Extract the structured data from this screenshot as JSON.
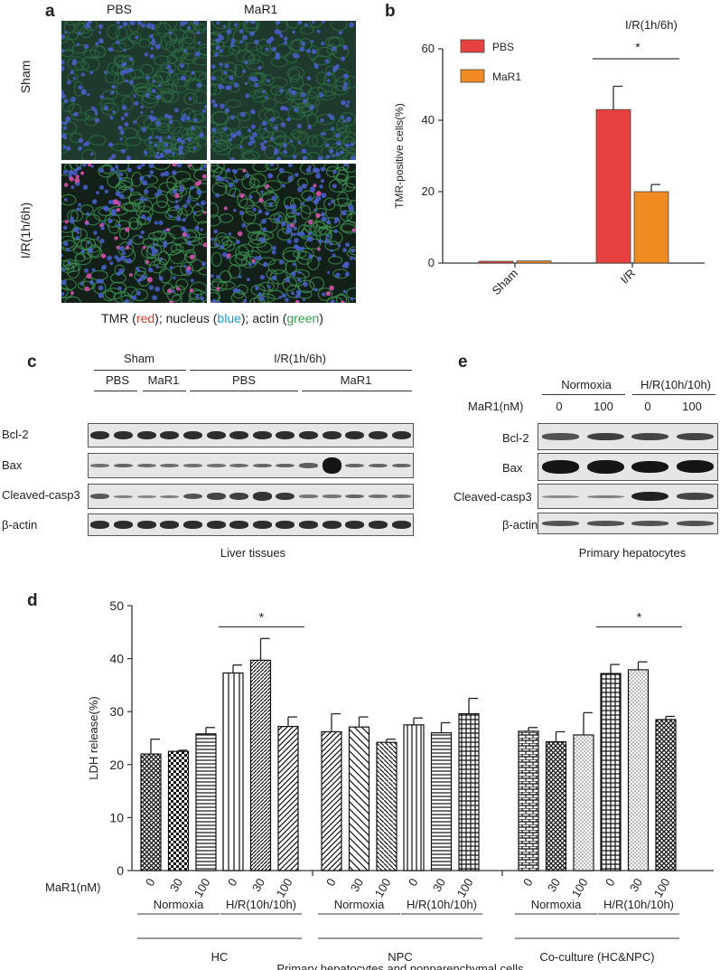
{
  "panel_a": {
    "label": "a",
    "col_headers": [
      "PBS",
      "MaR1"
    ],
    "row_headers": [
      "Sham",
      "I/R(1h/6h)"
    ],
    "caption_parts": [
      {
        "text": "TMR (",
        "color": "#222222"
      },
      {
        "text": "red",
        "color": "#e0382b"
      },
      {
        "text": "); nucleus (",
        "color": "#222222"
      },
      {
        "text": "blue",
        "color": "#1a9ad6"
      },
      {
        "text": "); actin (",
        "color": "#222222"
      },
      {
        "text": "green",
        "color": "#2ea24a"
      },
      {
        "text": ")",
        "color": "#222222"
      }
    ]
  },
  "panel_b": {
    "label": "b",
    "condition_title": "I/R(1h/6h)",
    "significance": "*"
  },
  "panel_c": {
    "label": "c",
    "group_sham": "Sham",
    "group_ir": "I/R(1h/6h)",
    "sub_labels": [
      "PBS",
      "MaR1",
      "PBS",
      "MaR1"
    ],
    "rows": [
      "Bcl-2",
      "Bax",
      "Cleaved-casp3",
      "β-actin"
    ],
    "caption": "Liver tissues"
  },
  "panel_e": {
    "label": "e",
    "group_normoxia": "Normoxia",
    "group_hr": "H/R(10h/10h)",
    "dose_label": "MaR1(nM)",
    "doses": [
      "0",
      "100",
      "0",
      "100"
    ],
    "rows": [
      "Bcl-2",
      "Bax",
      "Cleaved-casp3",
      "β-actin"
    ],
    "caption": "Primary hepatocytes"
  },
  "panel_d": {
    "label": "d",
    "dose_label": "MaR1(nM)",
    "condition_labels": [
      "Normoxia",
      "H/R(10h/10h)"
    ],
    "group_labels": [
      "HC",
      "NPC",
      "Co-culture (HC&NPC)"
    ],
    "footer": "Primary hepatocytes and nonparenchymal cells",
    "significance": "*"
  },
  "chart_data": [
    {
      "type": "bar",
      "panel": "b",
      "categories": [
        "Sham",
        "I/R"
      ],
      "series": [
        {
          "name": "PBS",
          "color": "#e8403e",
          "values": [
            0.5,
            43
          ],
          "errors": [
            0,
            6.5
          ]
        },
        {
          "name": "MaR1",
          "color": "#f28a22",
          "values": [
            0.6,
            20
          ],
          "errors": [
            0,
            2
          ]
        }
      ],
      "ylabel": "TMR-positive cells(%)",
      "ylim": [
        0,
        60
      ],
      "yticks": [
        0,
        20,
        40,
        60
      ],
      "legend": "top-left",
      "grid": false
    },
    {
      "type": "bar",
      "panel": "d",
      "ylabel": "LDH release(%)",
      "ylim": [
        0,
        50
      ],
      "yticks": [
        0,
        10,
        20,
        30,
        40,
        50
      ],
      "grid": false,
      "groups": [
        {
          "name": "HC",
          "bars": [
            {
              "condition": "Normoxia",
              "dose": "0",
              "value": 22,
              "error": 2.8,
              "pattern": "crosshatch"
            },
            {
              "condition": "Normoxia",
              "dose": "30",
              "value": 22.5,
              "error": 0.2,
              "pattern": "checker"
            },
            {
              "condition": "Normoxia",
              "dose": "100",
              "value": 25.8,
              "error": 1.2,
              "pattern": "hlines"
            },
            {
              "condition": "H/R(10h/10h)",
              "dose": "0",
              "value": 37.3,
              "error": 1.5,
              "pattern": "vlines"
            },
            {
              "condition": "H/R(10h/10h)",
              "dose": "30",
              "value": 39.7,
              "error": 4.1,
              "pattern": "diagdense"
            },
            {
              "condition": "H/R(10h/10h)",
              "dose": "100",
              "value": 27.2,
              "error": 1.8,
              "pattern": "diag"
            }
          ]
        },
        {
          "name": "NPC",
          "bars": [
            {
              "condition": "Normoxia",
              "dose": "0",
              "value": 26.2,
              "error": 3.4,
              "pattern": "diag"
            },
            {
              "condition": "Normoxia",
              "dose": "30",
              "value": 27.1,
              "error": 1.9,
              "pattern": "diagsparse"
            },
            {
              "condition": "Normoxia",
              "dose": "100",
              "value": 24.2,
              "error": 0.6,
              "pattern": "diagback"
            },
            {
              "condition": "H/R(10h/10h)",
              "dose": "0",
              "value": 27.5,
              "error": 1.3,
              "pattern": "vlinessparse"
            },
            {
              "condition": "H/R(10h/10h)",
              "dose": "30",
              "value": 26,
              "error": 1.9,
              "pattern": "hlines"
            },
            {
              "condition": "H/R(10h/10h)",
              "dose": "100",
              "value": 29.6,
              "error": 2.9,
              "pattern": "grid"
            }
          ]
        },
        {
          "name": "Co-culture (HC&NPC)",
          "bars": [
            {
              "condition": "Normoxia",
              "dose": "0",
              "value": 26.3,
              "error": 0.7,
              "pattern": "brick"
            },
            {
              "condition": "Normoxia",
              "dose": "30",
              "value": 24.3,
              "error": 1.9,
              "pattern": "crosshatch"
            },
            {
              "condition": "Normoxia",
              "dose": "100",
              "value": 25.6,
              "error": 4.2,
              "pattern": "dots"
            },
            {
              "condition": "H/R(10h/10h)",
              "dose": "0",
              "value": 37.2,
              "error": 1.7,
              "pattern": "grid"
            },
            {
              "condition": "H/R(10h/10h)",
              "dose": "30",
              "value": 37.9,
              "error": 1.5,
              "pattern": "dots"
            },
            {
              "condition": "H/R(10h/10h)",
              "dose": "100",
              "value": 28.5,
              "error": 0.6,
              "pattern": "crosshatch"
            }
          ]
        }
      ]
    }
  ]
}
